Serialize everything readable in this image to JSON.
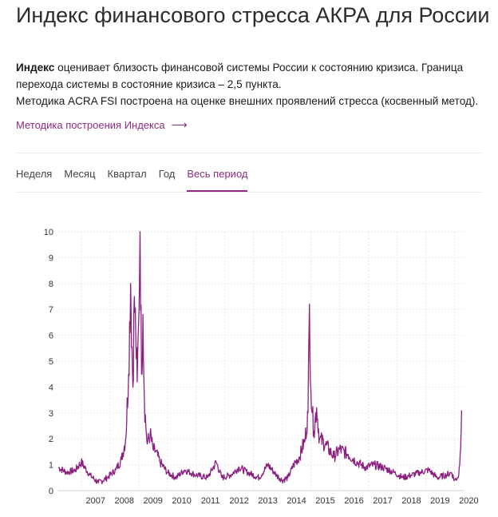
{
  "header": {
    "title": "Индекс финансового стресса АКРА для России"
  },
  "description": {
    "lead": "Индекс",
    "text1": " оценивает близость финансовой системы России к состоянию кризиса. Граница перехода системы в состояние кризиса – 2,5 пункта.",
    "text2": "Методика ACRA FSI построена на оценке внешних проявлений стресса (косвенный метод)."
  },
  "method_link": {
    "label": "Методика построения Индекса",
    "icon": "arrow-right-icon"
  },
  "tabs": [
    {
      "label": "Неделя",
      "active": false
    },
    {
      "label": "Месяц",
      "active": false
    },
    {
      "label": "Квартал",
      "active": false
    },
    {
      "label": "Год",
      "active": false
    },
    {
      "label": "Весь период",
      "active": true
    }
  ],
  "colors": {
    "accent": "#8e2a83",
    "series": "#8b1f80",
    "grid": "#e6e6e6"
  },
  "chart_data": {
    "type": "line",
    "title": "",
    "xlabel": "",
    "ylabel": "",
    "ylim": [
      0,
      10
    ],
    "xlim": [
      2006.2,
      2020.35
    ],
    "yticks": [
      0,
      1,
      2,
      3,
      4,
      5,
      6,
      7,
      8,
      9,
      10
    ],
    "xticks": [
      "2007",
      "2008",
      "2009",
      "2010",
      "2011",
      "2012",
      "2013",
      "2014",
      "2015",
      "2016",
      "2017",
      "2018",
      "2019",
      "2020"
    ],
    "grid": true,
    "legend": "none",
    "series": [
      {
        "x": [
          2006.2,
          2006.5,
          2006.8,
          2007.0,
          2007.3,
          2007.6,
          2007.9,
          2008.2,
          2008.4,
          2008.55,
          2008.65,
          2008.72,
          2008.8,
          2008.85,
          2008.9,
          2008.95,
          2009.0,
          2009.05,
          2009.1,
          2009.15,
          2009.2,
          2009.25,
          2009.3,
          2009.4,
          2009.5,
          2009.6,
          2009.75,
          2010.0,
          2010.3,
          2010.6,
          2011.0,
          2011.4,
          2011.7,
          2011.9,
          2012.2,
          2012.5,
          2012.8,
          2013.2,
          2013.5,
          2013.8,
          2014.0,
          2014.2,
          2014.4,
          2014.6,
          2014.8,
          2014.9,
          2014.95,
          2015.0,
          2015.05,
          2015.1,
          2015.2,
          2015.3,
          2015.5,
          2015.8,
          2016.0,
          2016.3,
          2016.6,
          2016.9,
          2017.2,
          2017.5,
          2017.9,
          2018.2,
          2018.5,
          2018.8,
          2019.1,
          2019.4,
          2019.7,
          2019.9,
          2020.0,
          2020.1,
          2020.15,
          2020.2,
          2020.25
        ],
        "y": [
          0.9,
          0.7,
          0.8,
          1.1,
          0.6,
          0.3,
          0.5,
          0.8,
          1.2,
          2.0,
          4.5,
          8.0,
          4.0,
          7.5,
          6.0,
          4.2,
          6.5,
          10.0,
          4.5,
          6.8,
          3.5,
          2.5,
          1.8,
          2.2,
          1.6,
          1.5,
          1.1,
          0.7,
          0.5,
          0.8,
          0.6,
          0.5,
          1.1,
          0.5,
          0.6,
          0.9,
          0.7,
          0.5,
          1.0,
          0.6,
          0.4,
          0.5,
          1.0,
          1.3,
          2.0,
          3.0,
          7.2,
          3.9,
          3.0,
          2.3,
          3.2,
          2.0,
          1.8,
          1.3,
          1.6,
          1.4,
          1.1,
          0.9,
          1.0,
          0.9,
          0.7,
          0.5,
          0.6,
          0.7,
          0.8,
          0.5,
          0.6,
          0.7,
          0.4,
          0.5,
          0.6,
          1.4,
          3.1
        ]
      }
    ]
  }
}
